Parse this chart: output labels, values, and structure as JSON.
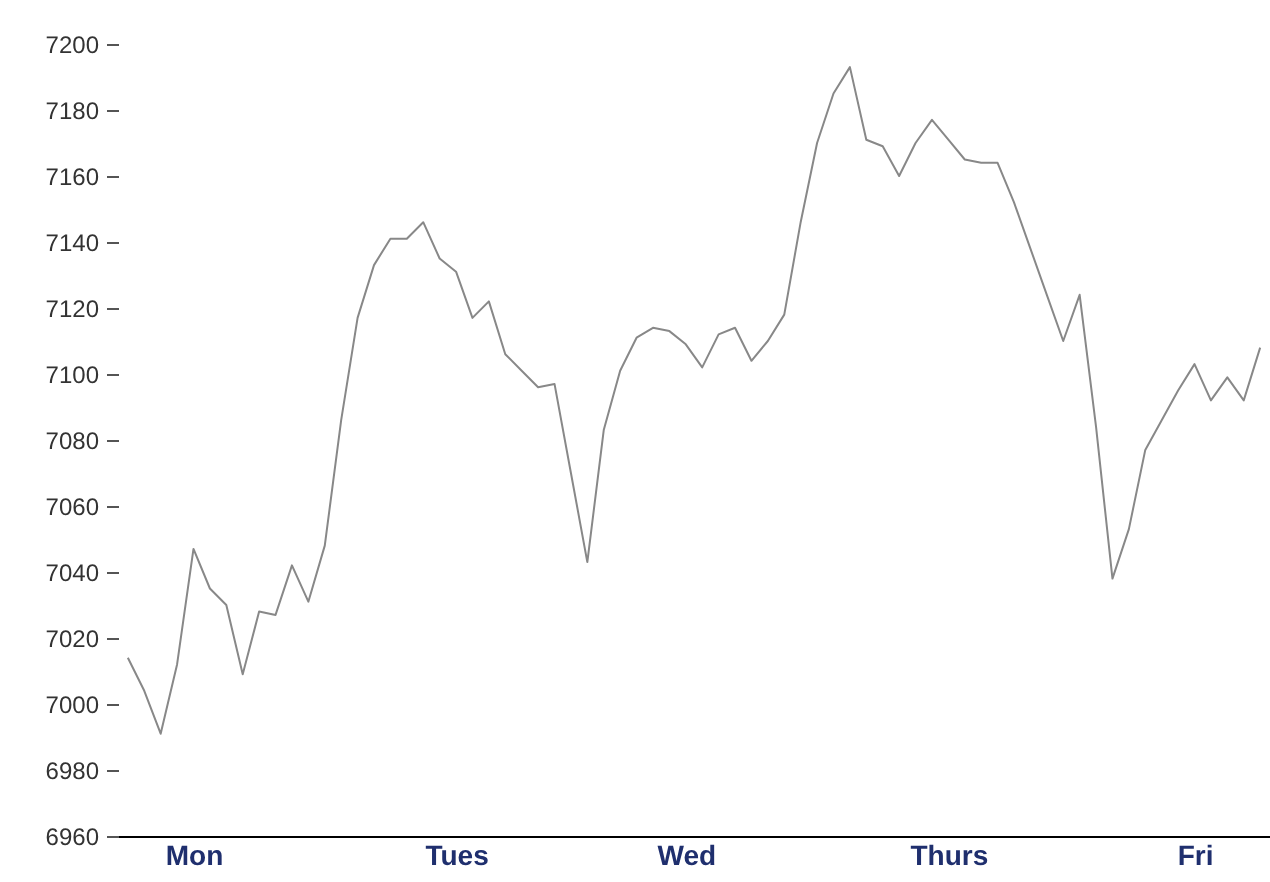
{
  "chart_data": {
    "type": "line",
    "categories": [
      null,
      null,
      null,
      null,
      "Mon",
      null,
      null,
      null,
      null,
      null,
      null,
      null,
      null,
      null,
      null,
      null,
      null,
      null,
      null,
      null,
      "Tues",
      null,
      null,
      null,
      null,
      null,
      null,
      null,
      null,
      null,
      null,
      null,
      null,
      null,
      "Wed",
      null,
      null,
      null,
      null,
      null,
      null,
      null,
      null,
      null,
      null,
      null,
      null,
      null,
      null,
      null,
      "Thurs",
      null,
      null,
      null,
      null,
      null,
      null,
      null,
      null,
      null,
      null,
      null,
      null,
      null,
      null,
      "Fri",
      null,
      null,
      null,
      null
    ],
    "series": [
      {
        "color": "#888888",
        "values": [
          7014,
          7004,
          6991,
          7012,
          7047,
          7035,
          7030,
          7009,
          7028,
          7027,
          7042,
          7031,
          7048,
          7086,
          7117,
          7133,
          7141,
          7141,
          7146,
          7135,
          7131,
          7117,
          7122,
          7106,
          7101,
          7096,
          7097,
          7070,
          7043,
          7083,
          7101,
          7111,
          7114,
          7113,
          7109,
          7102,
          7112,
          7114,
          7104,
          7110,
          7118,
          7146,
          7170,
          7185,
          7193,
          7171,
          7169,
          7160,
          7170,
          7177,
          7171,
          7165,
          7164,
          7164,
          7152,
          7138,
          7124,
          7110,
          7124,
          7084,
          7038,
          7053,
          7077,
          7086,
          7095,
          7103,
          7092,
          7099,
          7092,
          7108
        ]
      }
    ],
    "ylim": [
      6960,
      7200
    ],
    "yticks": [
      6960,
      6980,
      7000,
      7020,
      7040,
      7060,
      7080,
      7100,
      7120,
      7140,
      7160,
      7180,
      7200
    ],
    "grid": false,
    "legend": false,
    "marker": "none",
    "line_style": "solid"
  }
}
